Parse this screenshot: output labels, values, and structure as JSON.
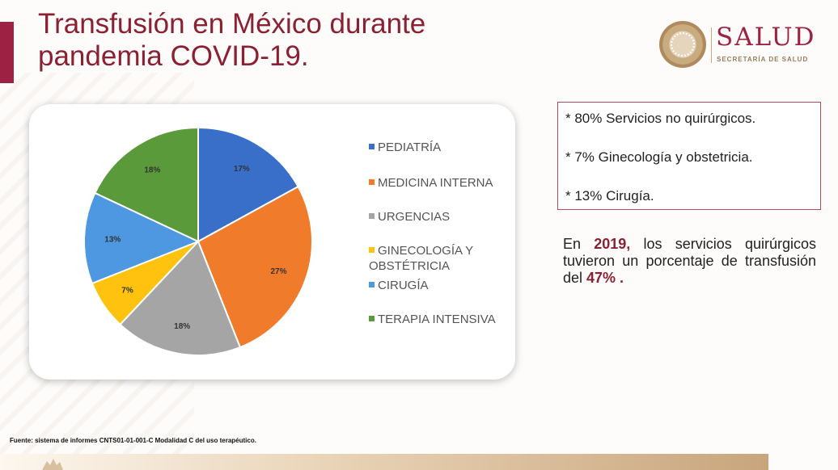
{
  "slide": {
    "title": "Transfusión en México durante pandemia COVID-19."
  },
  "logo": {
    "name": "SALUD",
    "subtitle": "SECRETARÍA DE SALUD",
    "icon": "coat-of-arms-seal-icon"
  },
  "colors": {
    "accent": "#9d2142",
    "title": "#8b2033",
    "gold": "#c9ab80"
  },
  "chart_data": {
    "type": "pie",
    "slices": [
      {
        "label": "PEDIATRÍA",
        "value": 17,
        "display": "17%",
        "color": "#3a6fc9"
      },
      {
        "label": "MEDICINA INTERNA",
        "value": 27,
        "display": "27%",
        "color": "#f07b2a"
      },
      {
        "label": "URGENCIAS",
        "value": 18,
        "display": "18%",
        "color": "#a5a5a5"
      },
      {
        "label": "GINECOLOGÍA Y OBSTÉTRICIA",
        "value": 7,
        "display": "7%",
        "color": "#ffc20e"
      },
      {
        "label": "CIRUGÍA",
        "value": 13,
        "display": "13%",
        "color": "#4d98e0"
      },
      {
        "label": "TERAPIA INTENSIVA",
        "value": 18,
        "display": "18%",
        "color": "#5a9a3b"
      }
    ],
    "legend": {
      "position": "right",
      "labels": [
        "PEDIATRÍA",
        "MEDICINA INTERNA",
        "URGENCIAS",
        "GINECOLOGÍA Y OBSTÉTRICIA",
        "CIRUGÍA",
        "TERAPIA INTENSIVA"
      ]
    }
  },
  "notes": [
    "* 80% Servicios no quirúrgicos.",
    "* 7% Ginecología y obstetricia.",
    "* 13% Cirugía."
  ],
  "paragraph": {
    "prefix": "En ",
    "year": "2019,",
    "middle": " los servicios quirúrgicos tuvieron un porcentaje de transfusión del ",
    "percent": "47% ."
  },
  "source": "Fuente: sistema  de informes CNTS01-01-001-C Modalidad C del uso terapéutico."
}
